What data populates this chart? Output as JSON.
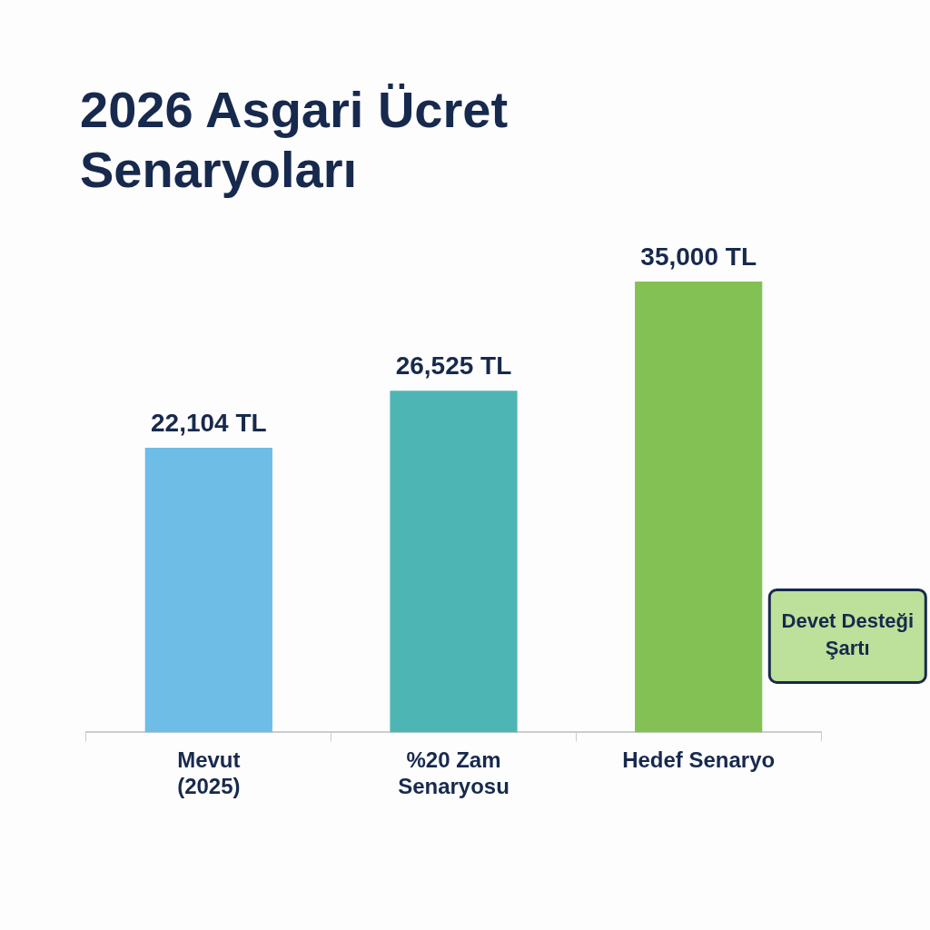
{
  "chart_data": {
    "type": "bar",
    "title": "2026 Asgari Ücret Senaryoları",
    "categories": [
      "Mevut\n(2025)",
      "%20 Zam\nSenaryosu",
      "Hedef Senaryo"
    ],
    "values": [
      22104,
      26525,
      35000
    ],
    "colors": [
      "#6dbde6",
      "#4db6b4",
      "#84c155"
    ],
    "value_labels": [
      "22,104 TL",
      "26,525 TL",
      "35,000 TL"
    ],
    "annotations": [
      "Devet Desteği Şartı"
    ],
    "legend": false
  }
}
